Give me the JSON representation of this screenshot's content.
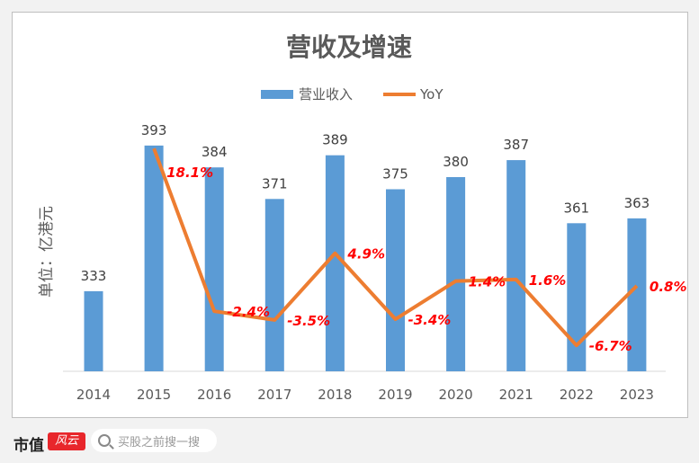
{
  "chart_data": {
    "type": "bar+line",
    "title": "营收及增速",
    "ylabel": "单位：亿港元",
    "categories": [
      "2014",
      "2015",
      "2016",
      "2017",
      "2018",
      "2019",
      "2020",
      "2021",
      "2022",
      "2023"
    ],
    "series": [
      {
        "name": "营业收入",
        "type": "bar",
        "color": "#5b9bd5",
        "values": [
          333,
          393,
          384,
          371,
          389,
          375,
          380,
          387,
          361,
          363
        ]
      },
      {
        "name": "YoY",
        "type": "line",
        "color": "#ed7d31",
        "values": [
          null,
          18.1,
          -2.4,
          -3.5,
          4.9,
          -3.4,
          1.4,
          1.6,
          -6.7,
          0.8
        ]
      }
    ],
    "yoy_labels": [
      "",
      "18.1%",
      "-2.4%",
      "-3.5%",
      "4.9%",
      "-3.4%",
      "1.4%",
      "1.6%",
      "-6.7%",
      "0.8%"
    ],
    "label_color": "#ff0000",
    "legend": "top-center"
  },
  "footer": {
    "brand": "市值",
    "brand_badge": "风云",
    "search_placeholder": "买股之前搜一搜"
  }
}
